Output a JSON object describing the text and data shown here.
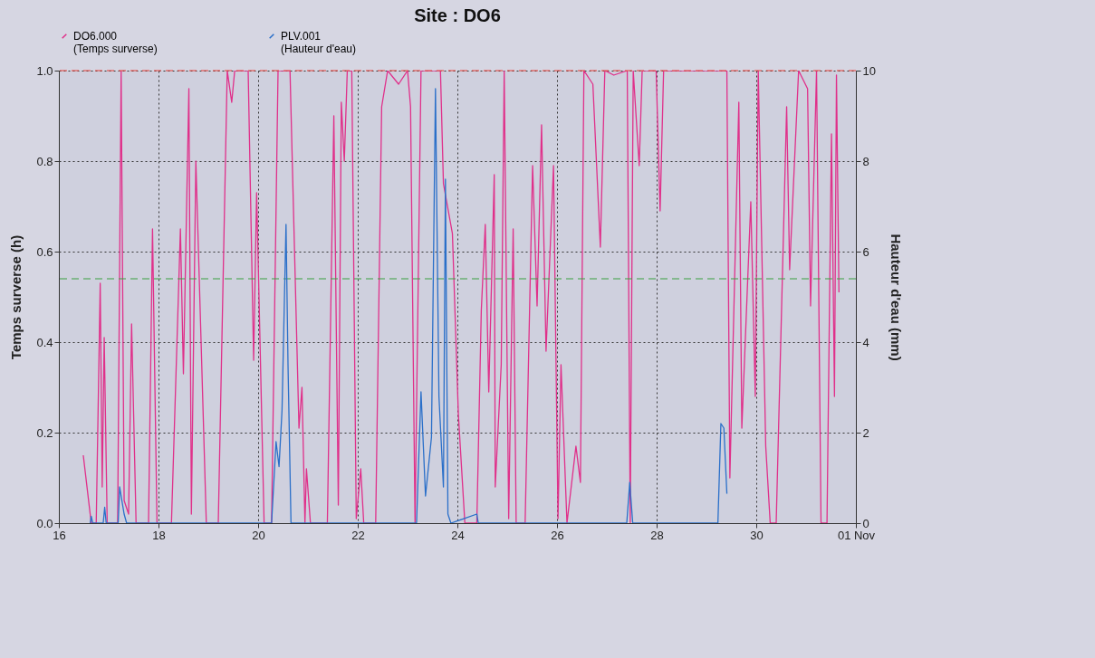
{
  "chart_data": {
    "type": "line",
    "title": "Site :  DO6",
    "ylabel": "Temps surverse  (h)",
    "y2label": "Hauteur d'eau  (mm)",
    "xlim": [
      16,
      32
    ],
    "xticks": [
      16,
      18,
      20,
      22,
      24,
      26,
      28,
      30,
      {
        "value": 32,
        "label": "01 Nov"
      }
    ],
    "ylim": [
      0,
      1
    ],
    "yticks": [
      {
        "value": 0,
        "label": "0.0"
      },
      0.2,
      0.4,
      0.6,
      0.8,
      {
        "value": 1,
        "label": "1.0"
      }
    ],
    "y2lim": [
      0,
      10
    ],
    "y2ticks": [
      0,
      2,
      4,
      6,
      8,
      10
    ],
    "grid": true,
    "legend": "top",
    "line_style": "solid",
    "ref_lines": [
      {
        "axis": "y",
        "value": 1,
        "color": "#e8403a",
        "line_style": "dashed"
      },
      {
        "axis": "y",
        "value": 0.54,
        "color": "#3aa040",
        "line_style": "dashed"
      }
    ],
    "series": [
      {
        "name": "DO6.000\n(Temps surverse)",
        "color": "#e0308a",
        "x": [
          16.49,
          16.65,
          16.75,
          16.83,
          16.87,
          16.91,
          16.97,
          17.18,
          17.25,
          17.31,
          17.4,
          17.46,
          17.55,
          17.8,
          17.88,
          17.97,
          18.26,
          18.44,
          18.5,
          18.61,
          18.66,
          18.75,
          18.96,
          19.2,
          19.38,
          19.47,
          19.53,
          19.8,
          19.91,
          19.97,
          20.12,
          20.27,
          20.4,
          20.64,
          20.82,
          20.88,
          20.94,
          20.97,
          21.05,
          21.39,
          21.52,
          21.61,
          21.67,
          21.73,
          21.79,
          21.88,
          21.97,
          22.06,
          22.12,
          22.36,
          22.48,
          22.6,
          22.82,
          23.0,
          23.06,
          23.15,
          23.27,
          23.66,
          23.72,
          23.9,
          24.02,
          24.15,
          24.39,
          24.48,
          24.56,
          24.63,
          24.74,
          24.76,
          24.88,
          24.94,
          25.03,
          25.12,
          25.18,
          25.36,
          25.51,
          25.6,
          25.69,
          25.78,
          25.93,
          26.02,
          26.08,
          26.2,
          26.38,
          26.47,
          26.54,
          26.72,
          26.87,
          26.96,
          27.14,
          27.41,
          27.47,
          27.53,
          27.65,
          27.71,
          27.99,
          28.07,
          28.14,
          29.41,
          29.47,
          29.65,
          29.71,
          29.89,
          29.98,
          30.04,
          30.19,
          30.28,
          30.4,
          30.61,
          30.67,
          30.85,
          31.03,
          31.09,
          31.21,
          31.3,
          31.42,
          31.51,
          31.57,
          31.61,
          31.66
        ],
        "values": [
          0.15,
          0,
          0,
          0.53,
          0.08,
          0.41,
          0,
          0,
          1.0,
          0.05,
          0.02,
          0.44,
          0,
          0,
          0.65,
          0,
          0,
          0.65,
          0.33,
          0.96,
          0.02,
          0.8,
          0,
          0,
          1.0,
          0.93,
          1.0,
          1.0,
          0.36,
          0.73,
          0,
          0,
          1.0,
          1.0,
          0.21,
          0.3,
          0,
          0.12,
          0,
          0,
          0.9,
          0.04,
          0.93,
          0.8,
          1.0,
          1.0,
          0.01,
          0.12,
          0,
          0,
          0.92,
          1.0,
          0.97,
          1.0,
          0.92,
          0,
          1.0,
          1.0,
          0.75,
          0.64,
          0.24,
          0,
          0,
          0.47,
          0.66,
          0.29,
          0.77,
          0.08,
          0.35,
          1.0,
          0.01,
          0.65,
          0,
          0,
          0.79,
          0.48,
          0.88,
          0.38,
          0.79,
          0.01,
          0.35,
          0,
          0.17,
          0.09,
          1.0,
          0.97,
          0.61,
          1.0,
          0.99,
          1.0,
          0,
          1.0,
          0.79,
          1.0,
          1.0,
          0.69,
          1.0,
          1.0,
          0.1,
          0.93,
          0.21,
          0.71,
          0.28,
          1.0,
          0.17,
          0,
          0,
          0.92,
          0.56,
          1.0,
          0.96,
          0.48,
          1.0,
          0,
          0,
          0.86,
          0.28,
          0.99,
          0.51
        ]
      },
      {
        "name": "PLV.001\n(Hauteur d'eau)",
        "color": "#2a6fc9",
        "axis": "y2",
        "x": [
          16.63,
          16.65,
          16.68,
          16.89,
          16.92,
          16.95,
          17.19,
          17.22,
          17.31,
          17.36,
          20.27,
          20.36,
          20.42,
          20.48,
          20.56,
          20.6,
          20.66,
          23.18,
          23.27,
          23.36,
          23.48,
          23.56,
          23.63,
          23.72,
          23.76,
          23.81,
          23.87,
          24.39,
          24.42,
          27.4,
          27.46,
          27.52,
          29.23,
          29.29,
          29.35,
          29.41
        ],
        "values": [
          0,
          0.15,
          0,
          0,
          0.35,
          0,
          0,
          0.8,
          0.2,
          0,
          0,
          1.8,
          1.25,
          2.5,
          6.6,
          3.5,
          0,
          0,
          2.9,
          0.6,
          1.9,
          9.6,
          2.8,
          0.8,
          7.6,
          0.2,
          0,
          0.2,
          0,
          0,
          0.9,
          0,
          0,
          2.2,
          2.1,
          0.65
        ]
      }
    ]
  }
}
